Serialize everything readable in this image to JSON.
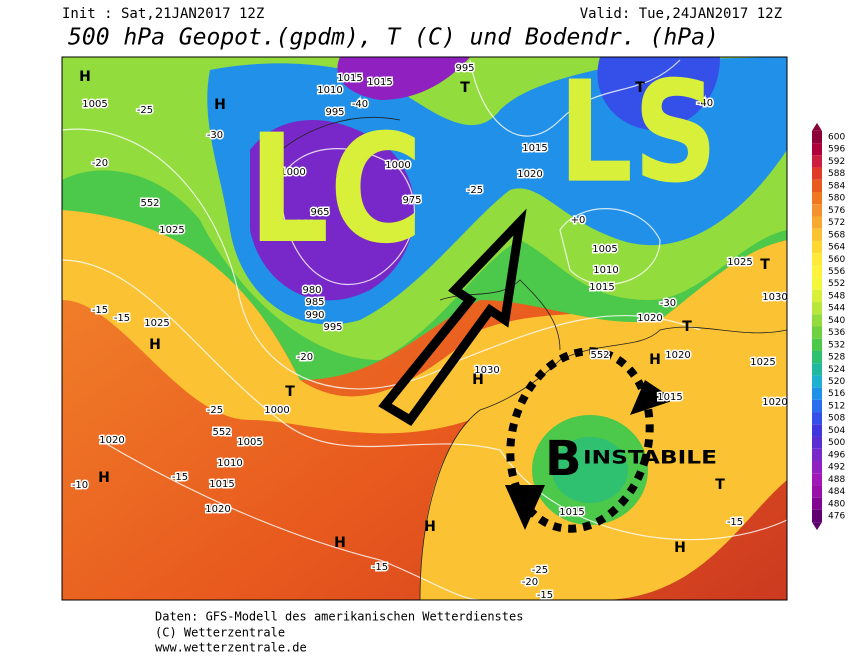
{
  "header": {
    "init": "Init : Sat,21JAN2017 12Z",
    "valid": "Valid: Tue,24JAN2017 12Z",
    "title": "500 hPa Geopot.(gpdm), T (C) und Bodendr. (hPa)"
  },
  "annotations": {
    "lc": "LC",
    "ls": "LS",
    "b": "B",
    "instabile": "INSTABILE"
  },
  "map_labels": [
    "H",
    "1005",
    "H",
    "-25",
    "-30",
    "-20",
    "552",
    "1025",
    "-15",
    "-15",
    "1025",
    "H",
    "-20",
    "-25",
    "1000",
    "T",
    "552",
    "1005",
    "1020",
    "1010",
    "1015",
    "1020",
    "H",
    "-10",
    "-15",
    "H",
    "H",
    "-15",
    "1015",
    "1015",
    "995",
    "T",
    "1010",
    "995",
    "-40",
    "1000",
    "1000",
    "975",
    "965",
    "960",
    "980",
    "985",
    "990",
    "995",
    "-25",
    "1015",
    "1020",
    "+0",
    "1005",
    "1010",
    "1015",
    "-30",
    "1025",
    "T",
    "1030",
    "1020",
    "T",
    "1020",
    "H",
    "552",
    "1025",
    "1030",
    "H",
    "1015",
    "1020",
    "T",
    "1015",
    "-15",
    "H",
    "-25",
    "-20",
    "-15",
    "T",
    "-40"
  ],
  "colorbar": {
    "ticks": [
      600,
      596,
      592,
      588,
      584,
      580,
      576,
      572,
      568,
      564,
      560,
      556,
      552,
      548,
      544,
      540,
      536,
      532,
      528,
      524,
      520,
      516,
      512,
      508,
      504,
      500,
      496,
      492,
      488,
      484,
      480,
      476
    ],
    "colors": [
      "#8b0038",
      "#b0003c",
      "#cc1f3f",
      "#e03b28",
      "#e85a1e",
      "#f07820",
      "#f59230",
      "#f8aa30",
      "#fbc233",
      "#fdd835",
      "#ffe93a",
      "#fff23d",
      "#f3f73a",
      "#d8f03a",
      "#b8e83c",
      "#92dc3e",
      "#6fd042",
      "#4cc84a",
      "#2fc070",
      "#22b8a0",
      "#20b0d0",
      "#2090e8",
      "#2a6ef0",
      "#3550e8",
      "#4038dc",
      "#5a2ed0",
      "#7828c8",
      "#9020c0",
      "#a018b8",
      "#9810a8",
      "#800890",
      "#600070"
    ]
  },
  "footer": [
    "Daten: GFS-Modell des amerikanischen Wetterdienstes",
    "(C) Wetterzentrale",
    "www.wetterzentrale.de"
  ]
}
